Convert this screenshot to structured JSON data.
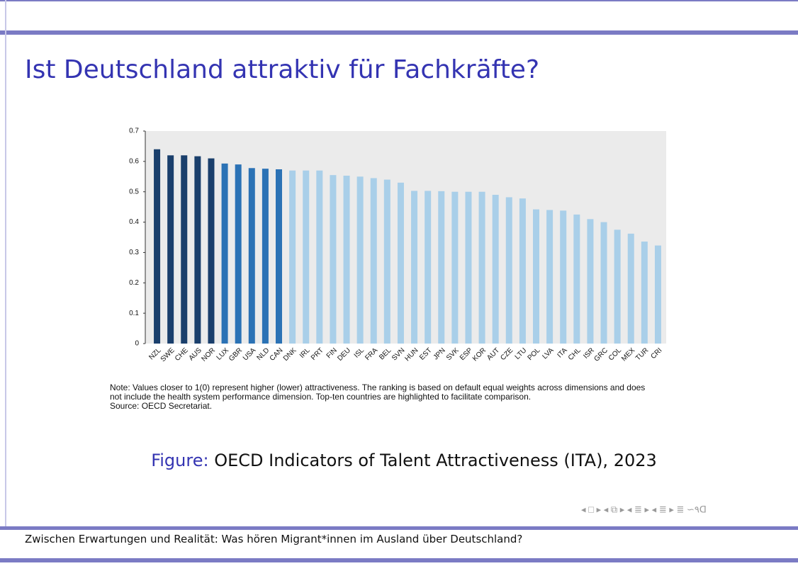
{
  "slide_title": "Ist Deutschland attraktiv für Fachkräfte?",
  "chart_data": {
    "type": "bar",
    "categories": [
      "NZL",
      "SWE",
      "CHE",
      "AUS",
      "NOR",
      "LUX",
      "GBR",
      "USA",
      "NLD",
      "CAN",
      "DNK",
      "IRL",
      "PRT",
      "FIN",
      "DEU",
      "ISL",
      "FRA",
      "BEL",
      "SVN",
      "HUN",
      "EST",
      "JPN",
      "SVK",
      "ESP",
      "KOR",
      "AUT",
      "CZE",
      "LTU",
      "POL",
      "LVA",
      "ITA",
      "CHL",
      "ISR",
      "GRC",
      "COL",
      "MEX",
      "TUR",
      "CRI"
    ],
    "values": [
      0.64,
      0.62,
      0.62,
      0.617,
      0.61,
      0.593,
      0.59,
      0.578,
      0.576,
      0.574,
      0.57,
      0.57,
      0.57,
      0.555,
      0.553,
      0.55,
      0.545,
      0.54,
      0.53,
      0.503,
      0.503,
      0.502,
      0.5,
      0.5,
      0.5,
      0.49,
      0.482,
      0.478,
      0.442,
      0.44,
      0.438,
      0.425,
      0.41,
      0.4,
      0.375,
      0.362,
      0.336,
      0.323
    ],
    "colors": [
      "#1a3f6c",
      "#1a3f6c",
      "#1a3f6c",
      "#1a3f6c",
      "#1a3f6c",
      "#2b72b5",
      "#2b72b5",
      "#2b72b5",
      "#2b72b5",
      "#2b72b5",
      "#a9cfe9",
      "#a9cfe9",
      "#a9cfe9",
      "#a9cfe9",
      "#a9cfe9",
      "#a9cfe9",
      "#a9cfe9",
      "#a9cfe9",
      "#a9cfe9",
      "#a9cfe9",
      "#a9cfe9",
      "#a9cfe9",
      "#a9cfe9",
      "#a9cfe9",
      "#a9cfe9",
      "#a9cfe9",
      "#a9cfe9",
      "#a9cfe9",
      "#a9cfe9",
      "#a9cfe9",
      "#a9cfe9",
      "#a9cfe9",
      "#a9cfe9",
      "#a9cfe9",
      "#a9cfe9",
      "#a9cfe9",
      "#a9cfe9",
      "#a9cfe9"
    ],
    "ylim": [
      0,
      0.7
    ],
    "yticks": [
      0,
      0.1,
      0.2,
      0.3,
      0.4,
      0.5,
      0.6,
      0.7
    ],
    "grid": false,
    "note": [
      "Note: Values closer to 1(0) represent higher (lower) attractiveness. The ranking is based on default equal weights across dimensions and does",
      "not include the health system performance dimension. Top-ten countries are highlighted to facilitate comparison.",
      "Source: OECD Secretariat."
    ]
  },
  "caption": {
    "label": "Figure:",
    "text": "OECD Indicators of Talent Attractiveness (ITA), 2023"
  },
  "footer": "Zwischen Erwartungen und Realität: Was hören Migrant*innen im Ausland über Deutschland?"
}
